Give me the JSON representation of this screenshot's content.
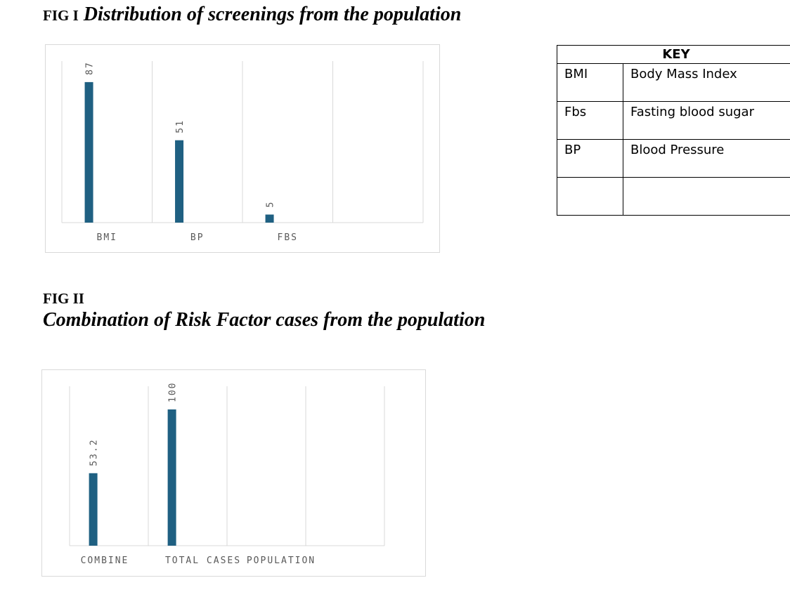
{
  "fig1": {
    "label": "FIG I",
    "title": "Distribution of screenings from the population"
  },
  "fig2": {
    "label": "FIG II",
    "title": "Combination of Risk Factor cases from the population"
  },
  "key": {
    "header": "KEY",
    "rows": [
      {
        "abbr": "BMI",
        "meaning": "Body Mass Index"
      },
      {
        "abbr": "Fbs",
        "meaning": "Fasting blood sugar"
      },
      {
        "abbr": "BP",
        "meaning": "Blood Pressure"
      },
      {
        "abbr": "",
        "meaning": ""
      }
    ]
  },
  "colors": {
    "bar": "#1f6082",
    "grid": "#d9d9d9",
    "text": "#595959"
  },
  "chart_data": [
    {
      "type": "bar",
      "categories": [
        "BMI",
        "BP",
        "FBS",
        ""
      ],
      "values": [
        87,
        51,
        5,
        null
      ],
      "ylim": [
        0,
        100
      ],
      "grid": true,
      "legend": "none"
    },
    {
      "type": "bar",
      "categories": [
        "COMBINE",
        "TOTAL CASES",
        "POPULATION",
        ""
      ],
      "values": [
        53.2,
        100,
        null,
        null
      ],
      "ylim": [
        0,
        117
      ],
      "grid": true,
      "legend": "none"
    }
  ]
}
